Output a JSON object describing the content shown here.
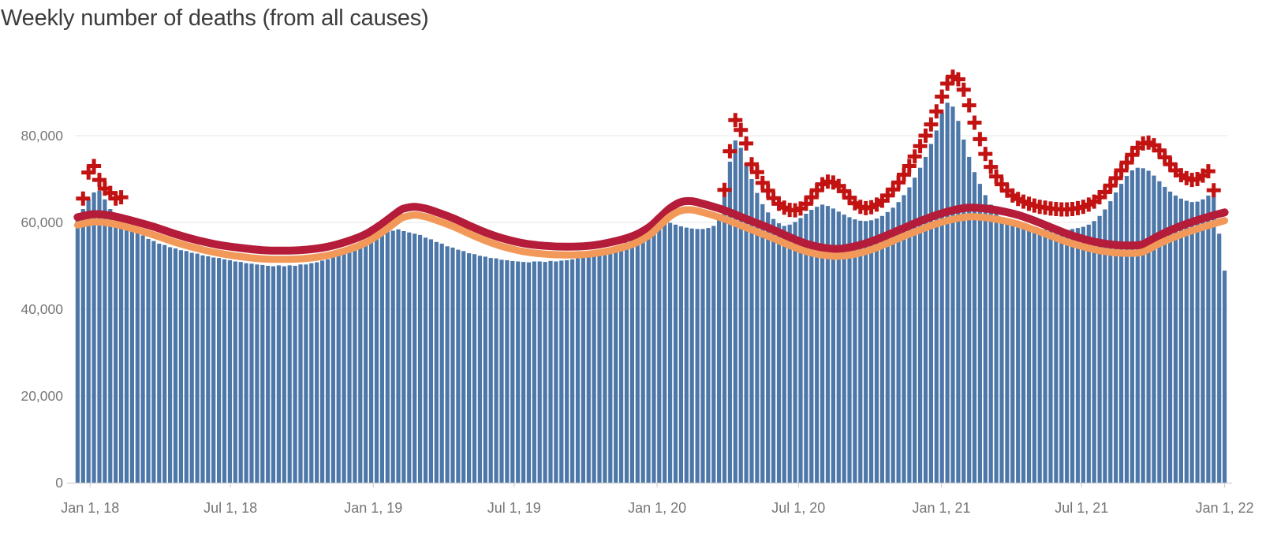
{
  "title": "Weekly number of deaths (from all causes)",
  "colors": {
    "bar": "#4c77a8",
    "threshold_line": "#b41c39",
    "expected_line": "#f2995a",
    "plus_marker": "#c21212",
    "title_text": "#3c3c3c",
    "axis_text": "#757575",
    "gridline": "#e9e9e9",
    "baseline": "#cfcfcf"
  },
  "chart_data": {
    "type": "bar",
    "title": "Weekly number of deaths (from all causes)",
    "xlabel": "",
    "ylabel": "",
    "grid": true,
    "legend": "none",
    "ylim": [
      0,
      97000
    ],
    "weeks_total": 212,
    "y_axis": {
      "tick_values": [
        0,
        20000,
        40000,
        60000,
        80000
      ],
      "tick_labels": [
        "0",
        "20,000",
        "40,000",
        "60,000",
        "80,000"
      ]
    },
    "x_axis": {
      "ticks": [
        {
          "label": "Jan 1, 18",
          "week": 2.3
        },
        {
          "label": "Jul 1, 18",
          "week": 28.1
        },
        {
          "label": "Jan 1, 19",
          "week": 54.4
        },
        {
          "label": "Jul 1, 19",
          "week": 80.3
        },
        {
          "label": "Jan 1, 20",
          "week": 106.6
        },
        {
          "label": "Jul 1, 20",
          "week": 132.6
        },
        {
          "label": "Jan 1, 21",
          "week": 158.9
        },
        {
          "label": "Jul 1, 21",
          "week": 184.7
        },
        {
          "label": "Jan 1, 22",
          "week": 211.0
        }
      ]
    },
    "series": {
      "observed_bars": {
        "values": [
          60800,
          63100,
          65400,
          66900,
          67300,
          65300,
          63100,
          61300,
          60300,
          59300,
          58500,
          57600,
          57000,
          56200,
          55700,
          55100,
          54800,
          54300,
          54000,
          53600,
          53400,
          53000,
          52800,
          52400,
          52200,
          51900,
          51800,
          51500,
          51300,
          51000,
          50900,
          50600,
          50500,
          50300,
          50200,
          50000,
          49900,
          50100,
          49900,
          50100,
          50000,
          50300,
          50300,
          50600,
          50800,
          51200,
          51500,
          52000,
          52400,
          53000,
          53500,
          54200,
          54700,
          55400,
          56100,
          57600,
          58000,
          58300,
          58100,
          58400,
          58000,
          57700,
          57400,
          57100,
          56500,
          56100,
          55500,
          55100,
          54500,
          54200,
          53700,
          53400,
          52900,
          52700,
          52300,
          52100,
          51800,
          51700,
          51400,
          51300,
          51100,
          51000,
          50900,
          50800,
          51000,
          51000,
          50900,
          51100,
          51000,
          51200,
          51300,
          51500,
          51700,
          52000,
          52200,
          52600,
          52900,
          53400,
          53800,
          54400,
          54800,
          55400,
          55900,
          56500,
          56900,
          57500,
          57900,
          59100,
          59700,
          59900,
          59500,
          59100,
          58800,
          58600,
          58500,
          58500,
          58700,
          59200,
          61000,
          66500,
          74000,
          78900,
          77200,
          73700,
          70000,
          66800,
          64200,
          62300,
          60800,
          59800,
          59200,
          59500,
          60100,
          61000,
          62000,
          62900,
          63600,
          64100,
          63800,
          63200,
          62500,
          61800,
          61200,
          60700,
          60400,
          60300,
          60500,
          60900,
          61500,
          62400,
          63400,
          64700,
          66300,
          68100,
          70300,
          72600,
          75100,
          78100,
          81200,
          85300,
          87600,
          86700,
          83400,
          79100,
          75100,
          71600,
          68900,
          66300,
          64100,
          62500,
          61100,
          60200,
          59600,
          59300,
          59000,
          58800,
          58600,
          58500,
          58400,
          58300,
          58300,
          58200,
          58300,
          58500,
          58700,
          59000,
          59500,
          60300,
          61500,
          63000,
          64900,
          66900,
          68900,
          70700,
          72000,
          72600,
          72500,
          71900,
          70800,
          69500,
          68200,
          67100,
          66200,
          65500,
          65000,
          64700,
          64800,
          65300,
          66200,
          67000,
          57400,
          48900
        ]
      },
      "threshold_line": {
        "weeks": [
          0,
          3,
          6,
          10,
          14,
          18,
          22,
          26,
          30,
          34,
          38,
          42,
          46,
          50,
          53,
          56,
          59,
          60,
          62,
          64,
          66,
          69,
          72,
          75,
          78,
          82,
          86,
          90,
          94,
          98,
          102,
          105,
          107,
          109,
          111,
          113,
          115,
          117,
          119,
          122,
          125,
          128,
          131,
          134,
          137,
          140,
          143,
          146,
          149,
          152,
          155,
          158,
          161,
          164,
          167,
          170,
          173,
          176,
          179,
          182,
          185,
          188,
          191,
          194,
          196,
          199,
          202,
          205,
          208,
          211
        ],
        "values": [
          61200,
          61900,
          61600,
          60400,
          59000,
          57300,
          55900,
          54800,
          54100,
          53600,
          53500,
          53700,
          54400,
          55800,
          57300,
          59700,
          62500,
          63200,
          63600,
          63200,
          62400,
          61000,
          59300,
          57700,
          56400,
          55200,
          54600,
          54400,
          54600,
          55400,
          56800,
          58800,
          61000,
          63300,
          64700,
          64900,
          64300,
          63600,
          62800,
          61300,
          59800,
          58300,
          56600,
          55100,
          54200,
          53900,
          54500,
          55600,
          57100,
          58700,
          60300,
          61700,
          62800,
          63400,
          63200,
          62600,
          61700,
          60400,
          58900,
          57400,
          56200,
          55300,
          54800,
          54700,
          55000,
          57000,
          58700,
          60100,
          61300,
          62300
        ]
      },
      "expected_line": {
        "weeks": [
          0,
          3,
          6,
          10,
          14,
          18,
          22,
          26,
          30,
          34,
          38,
          42,
          46,
          50,
          53,
          56,
          59,
          60,
          62,
          64,
          66,
          69,
          72,
          75,
          78,
          82,
          86,
          90,
          94,
          98,
          102,
          105,
          107,
          109,
          111,
          113,
          115,
          117,
          119,
          122,
          125,
          128,
          131,
          134,
          137,
          140,
          143,
          146,
          149,
          152,
          155,
          158,
          161,
          164,
          167,
          170,
          173,
          176,
          179,
          182,
          185,
          188,
          191,
          194,
          196,
          199,
          202,
          205,
          208,
          211
        ],
        "values": [
          59400,
          60100,
          59800,
          58600,
          57100,
          55400,
          54000,
          52900,
          52100,
          51600,
          51500,
          51700,
          52400,
          53800,
          55300,
          57700,
          60500,
          61200,
          61700,
          61300,
          60500,
          59100,
          57400,
          55800,
          54500,
          53300,
          52700,
          52500,
          52700,
          53500,
          54900,
          56900,
          59100,
          61400,
          62700,
          62900,
          62300,
          61600,
          60800,
          59300,
          57800,
          56300,
          54700,
          53300,
          52500,
          52200,
          52700,
          53700,
          55200,
          56800,
          58300,
          59700,
          60700,
          61300,
          61100,
          60500,
          59600,
          58300,
          56900,
          55500,
          54400,
          53500,
          53000,
          52900,
          53200,
          55100,
          56700,
          58100,
          59300,
          60400
        ]
      },
      "plus_markers": {
        "points": [
          [
            1,
            65500
          ],
          [
            2,
            71500
          ],
          [
            3,
            73000
          ],
          [
            4,
            69800
          ],
          [
            5,
            67800
          ],
          [
            6,
            66800
          ],
          [
            7,
            65500
          ],
          [
            8,
            65800
          ],
          [
            119,
            67500
          ],
          [
            120,
            76400
          ],
          [
            121,
            83600
          ],
          [
            122,
            81300
          ],
          [
            123,
            78200
          ],
          [
            124,
            73400
          ],
          [
            125,
            71600
          ],
          [
            126,
            69100
          ],
          [
            127,
            67300
          ],
          [
            128,
            65600
          ],
          [
            129,
            64300
          ],
          [
            130,
            63400
          ],
          [
            131,
            62900
          ],
          [
            132,
            62800
          ],
          [
            133,
            63200
          ],
          [
            134,
            64300
          ],
          [
            135,
            65800
          ],
          [
            136,
            67400
          ],
          [
            137,
            68800
          ],
          [
            138,
            69400
          ],
          [
            139,
            69200
          ],
          [
            140,
            68400
          ],
          [
            141,
            67200
          ],
          [
            142,
            65700
          ],
          [
            143,
            64400
          ],
          [
            144,
            63600
          ],
          [
            145,
            63300
          ],
          [
            146,
            63500
          ],
          [
            147,
            64100
          ],
          [
            148,
            65000
          ],
          [
            149,
            66200
          ],
          [
            150,
            67600
          ],
          [
            151,
            69200
          ],
          [
            152,
            71000
          ],
          [
            153,
            73000
          ],
          [
            154,
            75200
          ],
          [
            155,
            77600
          ],
          [
            156,
            80000
          ],
          [
            157,
            82600
          ],
          [
            158,
            85600
          ],
          [
            159,
            89000
          ],
          [
            160,
            92000
          ],
          [
            161,
            93600
          ],
          [
            162,
            93000
          ],
          [
            163,
            90600
          ],
          [
            164,
            87000
          ],
          [
            165,
            83000
          ],
          [
            166,
            79200
          ],
          [
            167,
            75800
          ],
          [
            168,
            72800
          ],
          [
            169,
            70600
          ],
          [
            170,
            68800
          ],
          [
            171,
            67300
          ],
          [
            172,
            66200
          ],
          [
            173,
            65400
          ],
          [
            174,
            64800
          ],
          [
            175,
            64300
          ],
          [
            176,
            63900
          ],
          [
            177,
            63600
          ],
          [
            178,
            63400
          ],
          [
            179,
            63200
          ],
          [
            180,
            63100
          ],
          [
            181,
            63000
          ],
          [
            182,
            63000
          ],
          [
            183,
            63100
          ],
          [
            184,
            63300
          ],
          [
            185,
            63600
          ],
          [
            186,
            64100
          ],
          [
            187,
            64800
          ],
          [
            188,
            65800
          ],
          [
            189,
            67000
          ],
          [
            190,
            68500
          ],
          [
            191,
            70200
          ],
          [
            192,
            72000
          ],
          [
            193,
            73800
          ],
          [
            194,
            75600
          ],
          [
            195,
            77200
          ],
          [
            196,
            78200
          ],
          [
            197,
            78400
          ],
          [
            198,
            77800
          ],
          [
            199,
            76600
          ],
          [
            200,
            75000
          ],
          [
            201,
            73400
          ],
          [
            202,
            72000
          ],
          [
            203,
            70900
          ],
          [
            204,
            70200
          ],
          [
            205,
            69800
          ],
          [
            206,
            70000
          ],
          [
            207,
            70800
          ],
          [
            208,
            71800
          ],
          [
            209,
            67400
          ]
        ]
      }
    }
  }
}
